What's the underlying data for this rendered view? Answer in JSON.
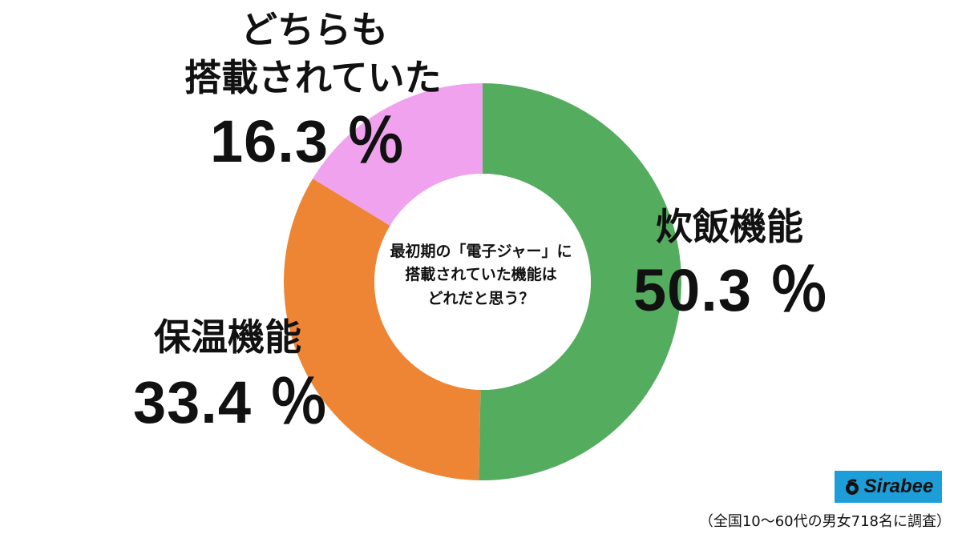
{
  "chart_data": {
    "type": "pie",
    "title": "最初期の「電子ジャー」に搭載されていた機能はどれだと思う？",
    "categories": [
      "炊飯機能",
      "保温機能",
      "どちらも搭載されていた"
    ],
    "values": [
      50.3,
      33.4,
      16.3
    ],
    "unit": "%",
    "colors": [
      "#54ad5f",
      "#ee8535",
      "#f0a2ef"
    ],
    "hole": "donut"
  },
  "center_question": {
    "line1": "最初期の「電子ジャー」に",
    "line2": "搭載されていた機能は",
    "line3": "どれだと思う？"
  },
  "labels": {
    "rice": {
      "name": "炊飯機能",
      "pct": "50.3 ％"
    },
    "warm": {
      "name": "保温機能",
      "pct": "33.4 ％"
    },
    "both": {
      "name_line1": "どちらも",
      "name_line2": "搭載されていた",
      "pct": "16.3 ％"
    }
  },
  "logo": {
    "text": "Sirabee",
    "color": "#1e9ed9"
  },
  "footnote": "（全国10～60代の男女718名に調査）"
}
